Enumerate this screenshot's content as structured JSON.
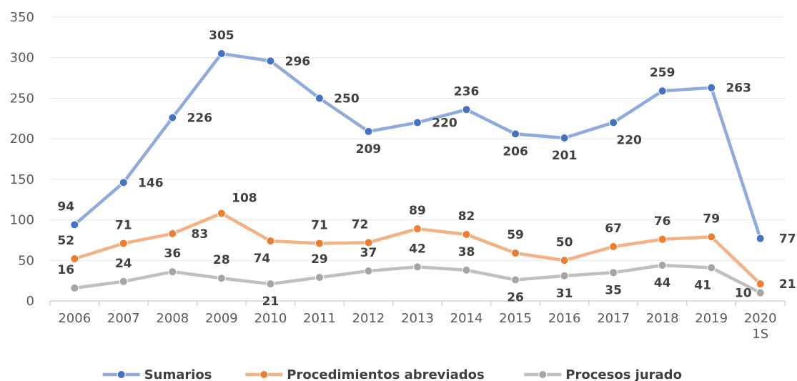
{
  "chart_data": {
    "type": "line",
    "categories": [
      "2006",
      "2007",
      "2008",
      "2009",
      "2010",
      "2011",
      "2012",
      "2013",
      "2014",
      "2015",
      "2016",
      "2017",
      "2018",
      "2019",
      "2020 1S"
    ],
    "series": [
      {
        "name": "Sumarios",
        "color": "#8faadc",
        "marker_color": "#4472c4",
        "values": [
          94,
          146,
          226,
          305,
          296,
          250,
          209,
          220,
          236,
          206,
          201,
          220,
          259,
          263,
          77
        ]
      },
      {
        "name": "Procedimientos abreviados",
        "color": "#f4b183",
        "marker_color": "#ed7d31",
        "values": [
          52,
          71,
          83,
          108,
          74,
          71,
          72,
          89,
          82,
          59,
          50,
          67,
          76,
          79,
          21
        ]
      },
      {
        "name": "Procesos jurado",
        "color": "#bfbfbf",
        "marker_color": "#a5a5a5",
        "values": [
          16,
          24,
          36,
          28,
          21,
          29,
          37,
          42,
          38,
          26,
          31,
          35,
          44,
          41,
          10
        ]
      }
    ],
    "ylim": [
      0,
      350
    ],
    "yticks": [
      0,
      50,
      100,
      150,
      200,
      250,
      300,
      350
    ],
    "grid": true,
    "legend": "bottom"
  }
}
